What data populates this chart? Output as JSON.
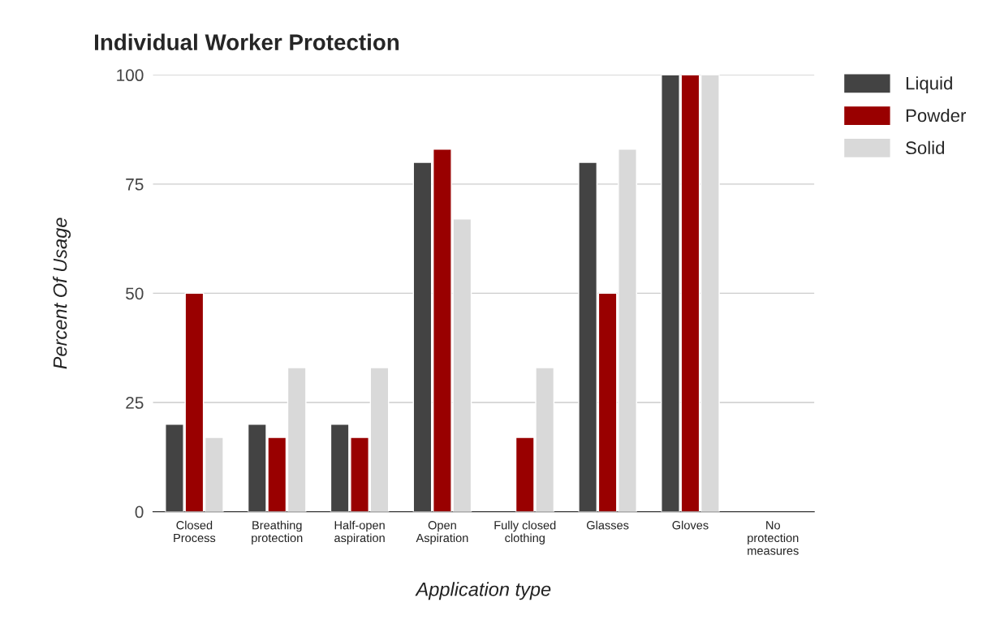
{
  "chart_data": {
    "type": "bar",
    "title": "Individual Worker Protection",
    "xlabel": "Application type",
    "ylabel": "Percent Of Usage",
    "categories": [
      "Closed\nProcess",
      "Breathing\nprotection",
      "Half-open\naspiration",
      "Open\nAspiration",
      "Fully closed\nclothing",
      "Glasses",
      "Gloves",
      "No\nprotection\nmeasures"
    ],
    "series": [
      {
        "name": "Liquid",
        "color": "#434343",
        "values": [
          20,
          20,
          20,
          80,
          null,
          80,
          100,
          null
        ]
      },
      {
        "name": "Powder",
        "color": "#990000",
        "values": [
          50,
          17,
          17,
          83,
          17,
          50,
          100,
          null
        ]
      },
      {
        "name": "Solid",
        "color": "#d9d9d9",
        "values": [
          17,
          33,
          33,
          67,
          33,
          83,
          100,
          null
        ]
      }
    ],
    "ylim": [
      0,
      100
    ],
    "yticks": [
      0,
      25,
      50,
      75,
      100
    ],
    "grid": "y",
    "legend": "top right"
  }
}
